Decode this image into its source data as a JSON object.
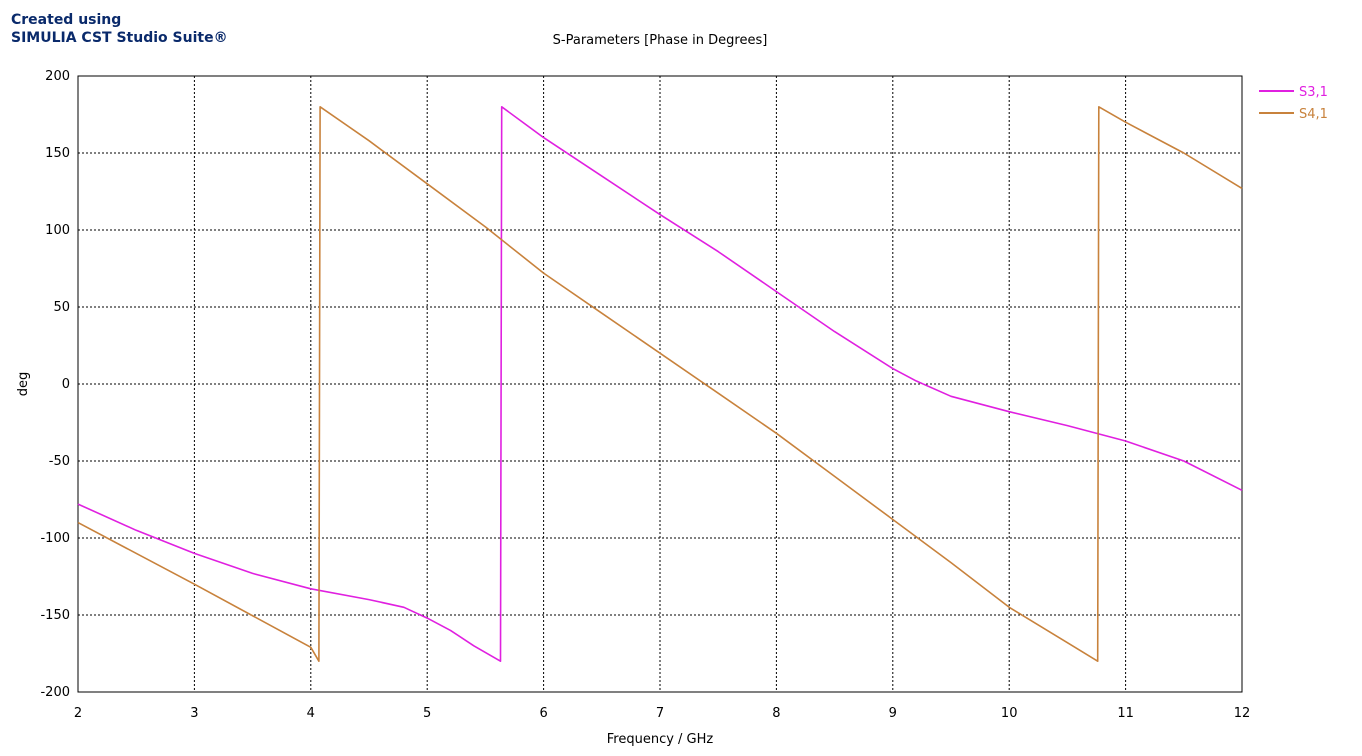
{
  "branding": {
    "line1": "Created using",
    "line2": "SIMULIA CST Studio Suite®"
  },
  "chart_data": {
    "type": "line",
    "title": "S-Parameters [Phase in Degrees]",
    "xlabel": "Frequency / GHz",
    "ylabel": "deg",
    "xlim": [
      2,
      12
    ],
    "ylim": [
      -200,
      200
    ],
    "xticks": [
      2,
      3,
      4,
      5,
      6,
      7,
      8,
      9,
      10,
      11,
      12
    ],
    "yticks": [
      200,
      150,
      100,
      50,
      0,
      -50,
      -100,
      -150,
      -200
    ],
    "grid": true,
    "legend_position": "top-right",
    "series": [
      {
        "name": "S3,1",
        "color": "#e020e0",
        "points": [
          [
            2,
            -78
          ],
          [
            2.5,
            -95
          ],
          [
            3,
            -110
          ],
          [
            3.5,
            -123
          ],
          [
            4,
            -133
          ],
          [
            4.5,
            -140
          ],
          [
            4.8,
            -145
          ],
          [
            5,
            -152
          ],
          [
            5.2,
            -160
          ],
          [
            5.4,
            -170
          ],
          [
            5.63,
            -180
          ],
          [
            5.64,
            180
          ],
          [
            6,
            160
          ],
          [
            6.5,
            135
          ],
          [
            7,
            110
          ],
          [
            7.5,
            86
          ],
          [
            8,
            60
          ],
          [
            8.5,
            34
          ],
          [
            9,
            10
          ],
          [
            9.2,
            2
          ],
          [
            9.5,
            -8
          ],
          [
            10,
            -18
          ],
          [
            10.5,
            -27
          ],
          [
            11,
            -37
          ],
          [
            11.5,
            -50
          ],
          [
            12,
            -69
          ]
        ]
      },
      {
        "name": "S4,1",
        "color": "#c8823c",
        "points": [
          [
            2,
            -90
          ],
          [
            3,
            -130
          ],
          [
            4,
            -171
          ],
          [
            4.07,
            -180
          ],
          [
            4.08,
            180
          ],
          [
            4.5,
            158
          ],
          [
            5,
            130
          ],
          [
            5.5,
            102
          ],
          [
            6,
            72
          ],
          [
            6.5,
            46
          ],
          [
            7,
            20
          ],
          [
            7.5,
            -6
          ],
          [
            8,
            -32
          ],
          [
            8.5,
            -60
          ],
          [
            9,
            -88
          ],
          [
            9.5,
            -116
          ],
          [
            10,
            -145
          ],
          [
            10.5,
            -168
          ],
          [
            10.76,
            -180
          ],
          [
            10.77,
            180
          ],
          [
            11,
            170
          ],
          [
            11.5,
            150
          ],
          [
            12,
            127
          ]
        ]
      }
    ]
  }
}
